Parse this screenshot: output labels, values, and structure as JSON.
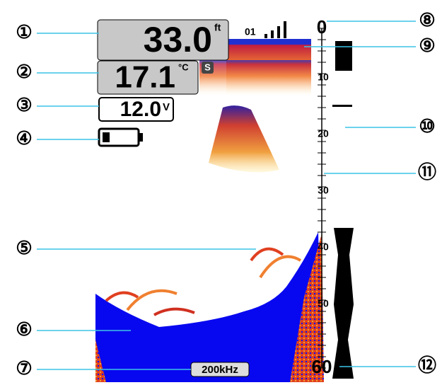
{
  "callouts": {
    "left": [
      "①",
      "②",
      "③",
      "④",
      "⑤",
      "⑥",
      "⑦"
    ],
    "right": [
      "⑧",
      "⑨",
      "⑩",
      "⑪",
      "⑫"
    ]
  },
  "screen": {
    "depth": "33.0",
    "depth_unit": "ft",
    "signal": "01",
    "temperature": "17.1",
    "temperature_unit": "°C",
    "sensor_icon": "S",
    "voltage": "12.0",
    "voltage_unit": "V",
    "depth_scale": [
      0,
      10,
      20,
      30,
      40,
      50,
      60
    ],
    "frequency": "200kHz"
  }
}
